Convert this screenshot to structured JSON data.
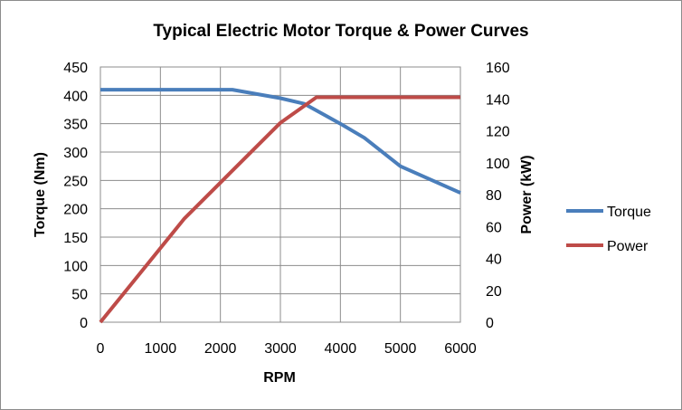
{
  "chart_data": {
    "type": "line",
    "title": "Typical Electric Motor Torque & Power Curves",
    "xlabel": "RPM",
    "ylabel_left": "Torque (Nm)",
    "ylabel_right": "Power (kW)",
    "xlim": [
      0,
      6000
    ],
    "ylim_left": [
      0,
      450
    ],
    "ylim_right": [
      0,
      160
    ],
    "x_ticks": [
      0,
      1000,
      2000,
      3000,
      4000,
      5000,
      6000
    ],
    "y_left_ticks": [
      0,
      50,
      100,
      150,
      200,
      250,
      300,
      350,
      400,
      450
    ],
    "y_right_ticks": [
      0,
      20,
      40,
      60,
      80,
      100,
      120,
      140,
      160
    ],
    "grid": true,
    "legend_position": "right",
    "series": [
      {
        "name": "Torque",
        "axis": "left",
        "color": "#4a7ebb",
        "x": [
          0,
          2200,
          3000,
          3400,
          4000,
          4400,
          5000,
          6000
        ],
        "y": [
          410,
          410,
          395,
          385,
          350,
          325,
          275,
          228
        ]
      },
      {
        "name": "Power",
        "axis": "right",
        "color": "#be4b48",
        "x": [
          0,
          1400,
          2200,
          3000,
          3300,
          3600,
          6000
        ],
        "y": [
          0,
          65,
          95,
          125,
          133,
          141,
          141
        ]
      }
    ]
  }
}
